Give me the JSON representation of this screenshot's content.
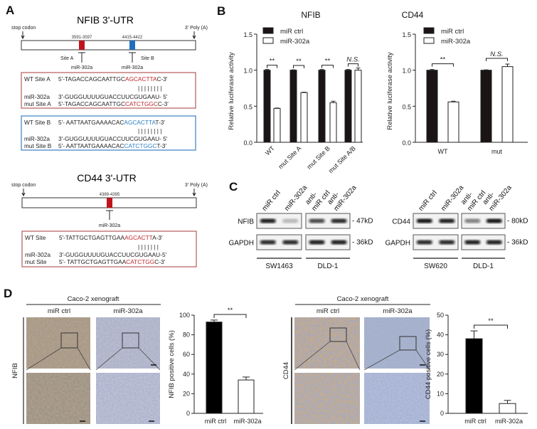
{
  "panel_a": {
    "label": "A",
    "nfib": {
      "title": "NFIB 3'-UTR",
      "stop_codon": "stop codon",
      "poly_a": "3' Poly (A)",
      "site_a_pos": "3591-3597",
      "site_b_pos": "4415-4422",
      "site_a": "Site A",
      "site_b": "Site B",
      "mir": "miR-302a",
      "site_a_color": "#c0282e",
      "site_b_color": "#2f7fc6",
      "box_a": {
        "wt_label": "WT Site A",
        "wt_pre": "5'-TAGACCAGCAATTGC",
        "wt_hl": "AGCACTTA",
        "wt_post": "C-3'",
        "pairs": "| | | | | | | |",
        "mir_label": "miR-302a",
        "mir_seq": "3'-GUGGUUUUGUACCUUCGUGAAU-  5'",
        "mut_label": "mut  Site A",
        "mut_pre": "5'-TAGACCAGCAATTGC",
        "mut_hl": "CATCTGGC",
        "mut_post": "C-3'"
      },
      "box_b": {
        "wt_label": "WT Site B",
        "wt_pre": "5'- AATTAATGAAAACAC",
        "wt_hl": "AGCACTTA",
        "wt_post": "T-3'",
        "pairs": "| | | | | | | |",
        "mir_label": "miR-302a",
        "mir_seq": "3'-GUGGUUUUGUACCUUCGUGAAU-  5'",
        "mut_label": "mut  Site B",
        "mut_pre": "5'- AATTAATGAAAACAC",
        "mut_hl": "CATCTGGC",
        "mut_post": "T-3'"
      }
    },
    "cd44": {
      "title": "CD44 3'-UTR",
      "stop_codon": "stop codon",
      "poly_a": "3' Poly (A)",
      "site_pos": "4389-4395",
      "mir": "miR-302a",
      "box": {
        "wt_label": "WT Site",
        "wt_pre": "5'-TATTGCTGAGTTGAA",
        "wt_hl": "AGCACTT",
        "wt_post": "A-3'",
        "pairs": "| | | | | | |",
        "mir_label": "miR-302a",
        "mir_seq": "3'-GUGGUUUUGUACCUUCGUGAAU-5'",
        "mut_label": "mut  Site",
        "mut_pre": "5'- TATTGCTGAGTTGAA",
        "mut_hl": "CATCTGG",
        "mut_post": "C-3'"
      }
    }
  },
  "panel_b": {
    "label": "B"
  },
  "panel_c": {
    "label": "C",
    "nfib_blot": {
      "lanes": [
        "miR ctrl",
        "miR-302a",
        "anti-",
        "miR ctrl",
        "anti-",
        "miR-302a"
      ],
      "rows": [
        "NFIB",
        "GAPDH"
      ],
      "sizes": [
        "- 47kD",
        "- 36kD"
      ],
      "cell_lines": [
        "SW1463",
        "DLD-1"
      ]
    },
    "cd44_blot": {
      "lanes": [
        "miR ctrl",
        "miR-302a",
        "anti-",
        "miR ctrl",
        "anti-",
        "miR-302a"
      ],
      "rows": [
        "CD44",
        "GAPDH"
      ],
      "sizes": [
        "- 80kD",
        "- 36kD"
      ],
      "cell_lines": [
        "SW620",
        "DLD-1"
      ]
    }
  },
  "panel_d": {
    "label": "D",
    "nfib": {
      "header": "Caco-2 xenograft",
      "cols": [
        "miR ctrl",
        "miR-302a"
      ],
      "row": "NFIB"
    },
    "cd44": {
      "header": "Caco-2 xenograft",
      "cols": [
        "miR ctrl",
        "miR-302a"
      ],
      "row": "CD44"
    }
  },
  "chart_data": [
    {
      "type": "bar",
      "title": "NFIB",
      "ylabel": "Relative luciferase activity",
      "xlabel": "",
      "ylim": [
        0,
        1.5
      ],
      "yticks": [
        "0.0",
        "0.5",
        "1.0",
        "1.5"
      ],
      "legend": "top-left",
      "categories": [
        "WT",
        "mut Site A",
        "mut Site B",
        "mut Site A/B"
      ],
      "series": [
        {
          "name": "miR ctrl",
          "color": "#1a1414",
          "values": [
            1.0,
            1.0,
            1.0,
            1.0
          ],
          "errors": [
            0.01,
            0.005,
            0.01,
            0.01
          ]
        },
        {
          "name": "miR-302a",
          "color": "#ffffff",
          "values": [
            0.47,
            0.69,
            0.55,
            1.0
          ],
          "errors": [
            0.005,
            0.005,
            0.02,
            0.03
          ]
        }
      ],
      "annotations": [
        "**",
        "**",
        "**",
        "N.S."
      ]
    },
    {
      "type": "bar",
      "title": "CD44",
      "ylabel": "Relative luciferase activity",
      "xlabel": "",
      "ylim": [
        0,
        1.5
      ],
      "yticks": [
        "0.0",
        "0.5",
        "1.0",
        "1.5"
      ],
      "legend": "top-left",
      "categories": [
        "WT",
        "mut"
      ],
      "series": [
        {
          "name": "miR ctrl",
          "color": "#1a1414",
          "values": [
            1.0,
            1.0
          ],
          "errors": [
            0.01,
            0.005
          ]
        },
        {
          "name": "miR-302a",
          "color": "#ffffff",
          "values": [
            0.56,
            1.05
          ],
          "errors": [
            0.01,
            0.035
          ]
        }
      ],
      "annotations": [
        "**",
        "N.S."
      ]
    },
    {
      "type": "bar",
      "ylabel": "NFIB positive cells (%)",
      "xlabel": "",
      "ylim": [
        0,
        100
      ],
      "yticks": [
        "0",
        "20",
        "40",
        "60",
        "80",
        "100"
      ],
      "categories": [
        "miR ctrl",
        "miR-302a"
      ],
      "colors": [
        "#000000",
        "#ffffff"
      ],
      "values": [
        93,
        34
      ],
      "errors": [
        2,
        3
      ],
      "annotations": [
        "**"
      ]
    },
    {
      "type": "bar",
      "ylabel": "CD44 positive cells (%)",
      "xlabel": "",
      "ylim": [
        0,
        50
      ],
      "yticks": [
        "0",
        "10",
        "20",
        "30",
        "40",
        "50"
      ],
      "categories": [
        "miR ctrl",
        "miR-302a"
      ],
      "colors": [
        "#000000",
        "#ffffff"
      ],
      "values": [
        38,
        5
      ],
      "errors": [
        4,
        1.6
      ],
      "annotations": [
        "**"
      ]
    }
  ]
}
